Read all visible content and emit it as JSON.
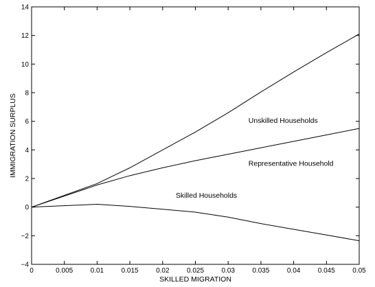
{
  "chart_data": {
    "type": "line",
    "title": "",
    "xlabel": "SKILLED MIGRATION",
    "ylabel": "IMMIGRATION SURPLUS",
    "xlim": [
      0,
      0.05
    ],
    "ylim": [
      -4,
      14
    ],
    "grid": false,
    "x_ticks": [
      "0",
      "0.005",
      "0.01",
      "0.015",
      "0.02",
      "0.025",
      "0.03",
      "0.035",
      "0.04",
      "0.045",
      "0.05"
    ],
    "y_ticks": [
      "−4",
      "−2",
      "0",
      "2",
      "4",
      "6",
      "8",
      "10",
      "12",
      "14"
    ],
    "x_tick_values": [
      0,
      0.005,
      0.01,
      0.015,
      0.02,
      0.025,
      0.03,
      0.035,
      0.04,
      0.045,
      0.05
    ],
    "y_tick_values": [
      -4,
      -2,
      0,
      2,
      4,
      6,
      8,
      10,
      12,
      14
    ],
    "x": [
      0,
      0.01,
      0.015,
      0.02,
      0.025,
      0.03,
      0.035,
      0.04,
      0.045,
      0.05
    ],
    "series": [
      {
        "name": "Unskilled Households",
        "values": [
          0,
          1.65,
          2.75,
          4.0,
          5.25,
          6.6,
          8.05,
          9.45,
          10.8,
          12.1
        ]
      },
      {
        "name": "Representative Household",
        "values": [
          0,
          1.55,
          2.2,
          2.75,
          3.25,
          3.7,
          4.15,
          4.6,
          5.05,
          5.5
        ]
      },
      {
        "name": "Skilled Households",
        "values": [
          0,
          0.2,
          0.05,
          -0.15,
          -0.35,
          -0.7,
          -1.15,
          -1.55,
          -1.95,
          -2.35
        ]
      }
    ],
    "annotations": [
      {
        "text": "Unskilled Households",
        "x": 0.0331,
        "y": 5.9
      },
      {
        "text": "Representative Household",
        "x": 0.0331,
        "y": 2.9
      },
      {
        "text": "Skilled Households",
        "x": 0.022,
        "y": 0.65
      }
    ]
  }
}
